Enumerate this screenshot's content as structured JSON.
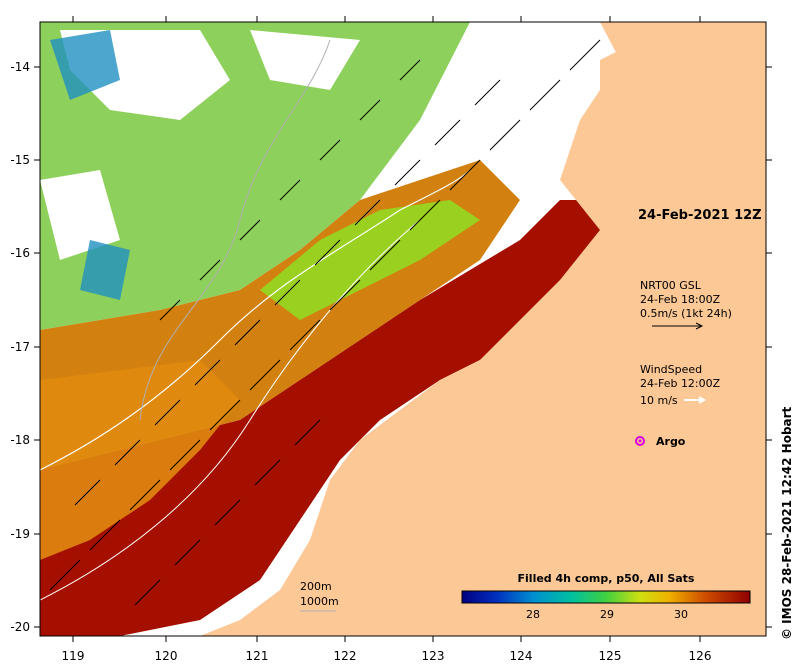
{
  "map": {
    "date_label": "24-Feb-2021 12Z",
    "x_ticks": [
      "119",
      "120",
      "121",
      "122",
      "123",
      "124",
      "125",
      "126"
    ],
    "y_ticks": [
      "-14",
      "-15",
      "-16",
      "-17",
      "-18",
      "-19",
      "-20"
    ],
    "current_legend": {
      "line1": "NRT00 GSL",
      "line2": "24-Feb 18:00Z",
      "line3": "0.5m/s (1kt 24h)"
    },
    "wind_legend": {
      "line1": "WindSpeed",
      "line2": "24-Feb 12:00Z",
      "line3": "10 m/s"
    },
    "argo_label": "Argo",
    "isobath_legend": {
      "line1": "200m",
      "line2": "1000m"
    },
    "colorbar": {
      "title": "Filled 4h comp, p50, All Sats",
      "ticks": [
        "28",
        "29",
        "30"
      ]
    },
    "credit": "© IMOS 28-Feb-2021 12:42 Hobart",
    "colors": {
      "land": "#fcc896",
      "hot": "#a00f00",
      "warm": "#d07010",
      "mid": "#88d030",
      "cool": "#20a0d0",
      "cold": "#0a2090"
    }
  }
}
